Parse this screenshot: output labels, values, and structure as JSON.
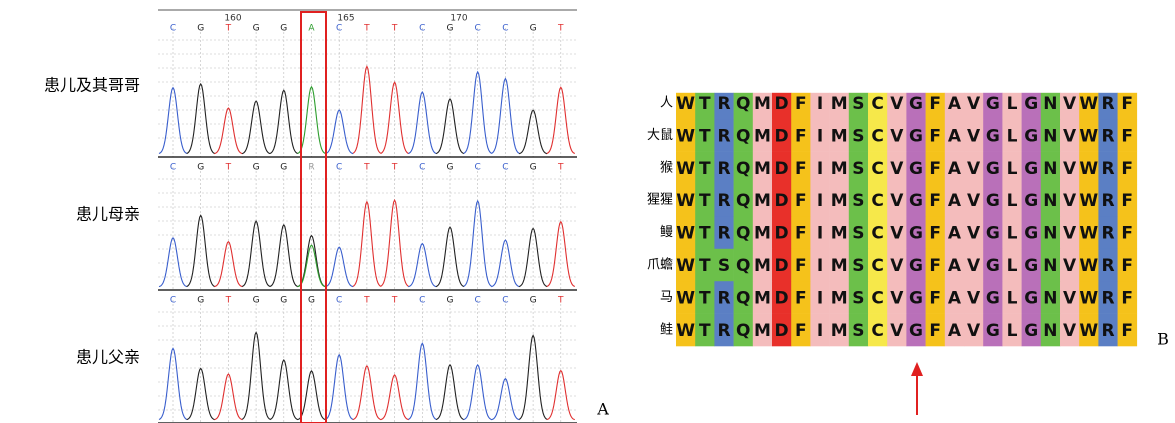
{
  "panel_a": {
    "label": "A",
    "positions": [
      "160",
      "165",
      "170"
    ],
    "base_colors": {
      "C": "#3a5fcd",
      "G": "#222222",
      "T": "#e03030",
      "A": "#2e9e2e",
      "R": "#999999"
    },
    "tracks": [
      {
        "name": "患儿及其哥哥",
        "bases": "CGTGGACTTCGCCGT"
      },
      {
        "name": "患儿母亲",
        "bases": "CGTGGRCTTCGCCGT"
      },
      {
        "name": "患儿父亲",
        "bases": "CGTGGGCTTCGCCGT"
      }
    ]
  },
  "panel_b": {
    "label": "B",
    "residue_colors": {
      "W": "#f5c21b",
      "T": "#6cc04a",
      "R": "#5b7fc4",
      "Q": "#6cc04a",
      "M": "#f4bcbc",
      "D": "#e8302a",
      "F": "#f5c21b",
      "I": "#f4bcbc",
      "S": "#6cc04a",
      "C": "#f6e84a",
      "V": "#f4bcbc",
      "G": "#b970b9",
      "A": "#f4bcbc",
      "L": "#f4bcbc",
      "N": "#6cc04a"
    },
    "rows": [
      {
        "species": "人",
        "sequence": "WTRQMDFIMSCVGFAVGLGNVWRF"
      },
      {
        "species": "大鼠",
        "sequence": "WTRQMDFIMSCVGFAVGLGNVWRF"
      },
      {
        "species": "猴",
        "sequence": "WTRQMDFIMSCVGFAVGLGNVWRF"
      },
      {
        "species": "猩猩",
        "sequence": "WTRQMDFIMSCVGFAVGLGNVWRF"
      },
      {
        "species": "鳗",
        "sequence": "WTRQMDFIMSCVGFAVGLGNVWRF"
      },
      {
        "species": "爪蟾",
        "sequence": "WTSQMDFIMSCVGFAVGLGNVWRF"
      },
      {
        "species": "马",
        "sequence": "WTRQMDFIMSCVGFAVGLGNVWRF"
      },
      {
        "species": "鲑",
        "sequence": "WTRQMDFIMSCVGFAVGLGNVWRF"
      }
    ]
  }
}
